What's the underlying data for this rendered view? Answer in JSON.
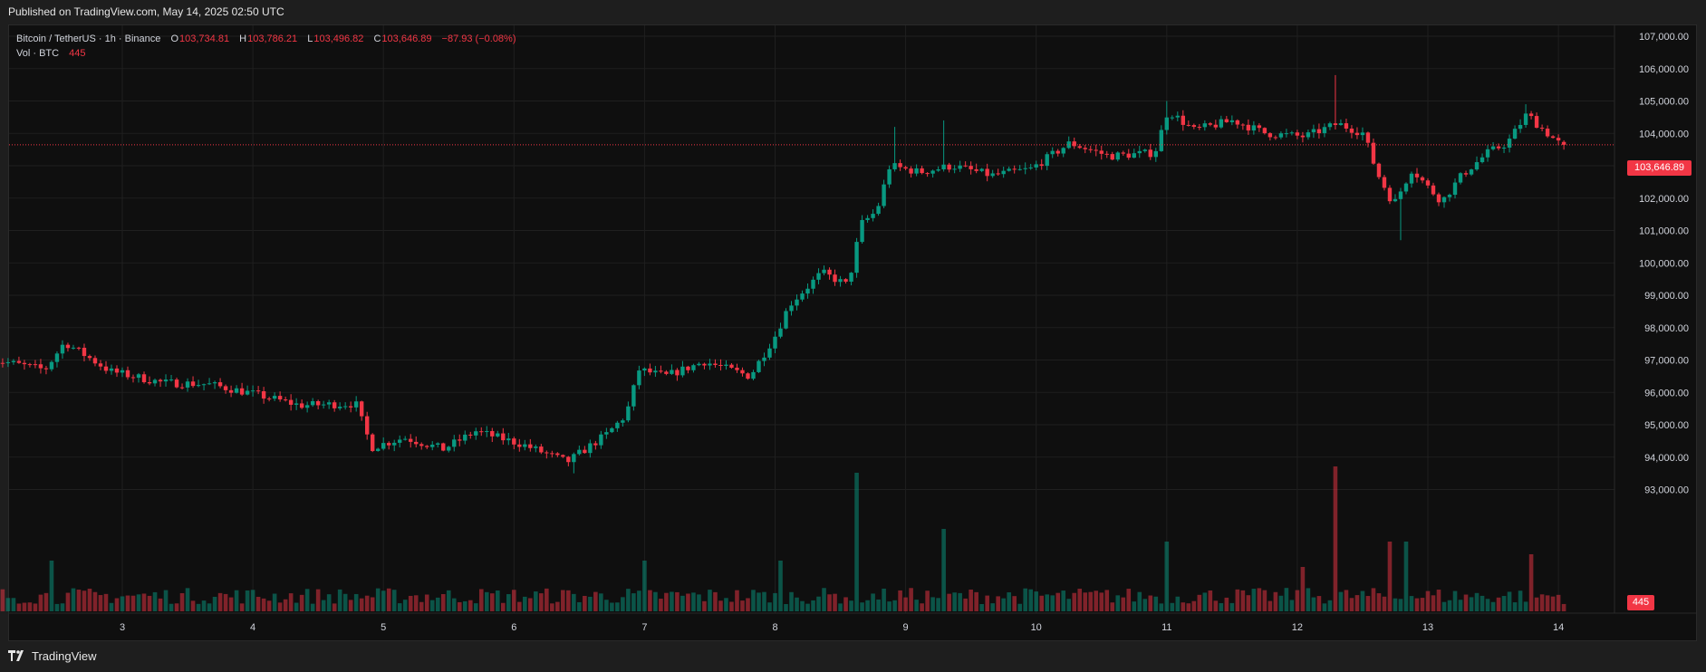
{
  "header": {
    "published": "Published on TradingView.com, May 14, 2025 02:50 UTC"
  },
  "legend": {
    "symbol": "Bitcoin / TetherUS · 1h · Binance",
    "o_label": "O",
    "o": "103,734.81",
    "h_label": "H",
    "h": "103,786.21",
    "l_label": "L",
    "l": "103,496.82",
    "c_label": "C",
    "c": "103,646.89",
    "change": "−87.93 (−0.08%)",
    "vol_label": "Vol · BTC",
    "vol": "445"
  },
  "price_tag": "103,646.89",
  "vol_tag": "445",
  "footer": {
    "brand": "TradingView"
  },
  "colors": {
    "up": "#089981",
    "down": "#f23645",
    "bg": "#0f0f0f",
    "grid": "#1f1f1f"
  },
  "chart_data": {
    "type": "candlestick",
    "interval": "1h",
    "y_ticks": [
      93000,
      94000,
      95000,
      96000,
      97000,
      98000,
      99000,
      100000,
      101000,
      102000,
      103000,
      104000,
      105000,
      106000,
      107000
    ],
    "y_tick_labels": [
      "93,000.00",
      "94,000.00",
      "95,000.00",
      "96,000.00",
      "97,000.00",
      "98,000.00",
      "99,000.00",
      "100,000.00",
      "101,000.00",
      "102,000.00",
      "103,000.00",
      "104,000.00",
      "105,000.00",
      "106,000.00",
      "107,000.00"
    ],
    "ylim": [
      92400,
      107400
    ],
    "x_tick_labels": [
      "3",
      "4",
      "5",
      "6",
      "7",
      "8",
      "9",
      "10",
      "11",
      "12",
      "13",
      "14"
    ],
    "last_price": 103646.89,
    "grid": true,
    "up_color": "#089981",
    "down_color": "#f23645",
    "anchors": [
      [
        2.0,
        97050
      ],
      [
        2.45,
        96700
      ],
      [
        2.6,
        97550
      ],
      [
        2.95,
        96650
      ],
      [
        3.35,
        96300
      ],
      [
        3.7,
        96250
      ],
      [
        4.0,
        96000
      ],
      [
        4.4,
        95600
      ],
      [
        4.83,
        95650
      ],
      [
        4.95,
        94300
      ],
      [
        5.2,
        94600
      ],
      [
        5.5,
        94250
      ],
      [
        5.75,
        94800
      ],
      [
        6.1,
        94400
      ],
      [
        6.45,
        93850
      ],
      [
        6.75,
        94700
      ],
      [
        6.9,
        95300
      ],
      [
        7.0,
        96700
      ],
      [
        7.2,
        96500
      ],
      [
        7.5,
        96950
      ],
      [
        7.85,
        96500
      ],
      [
        8.05,
        97800
      ],
      [
        8.15,
        98700
      ],
      [
        8.4,
        99700
      ],
      [
        8.6,
        99300
      ],
      [
        8.7,
        101200
      ],
      [
        8.82,
        101600
      ],
      [
        8.92,
        103000
      ],
      [
        9.15,
        102800
      ],
      [
        9.4,
        103000
      ],
      [
        9.7,
        102700
      ],
      [
        10.0,
        102900
      ],
      [
        10.3,
        103700
      ],
      [
        10.6,
        103300
      ],
      [
        10.95,
        103400
      ],
      [
        11.05,
        104700
      ],
      [
        11.25,
        104100
      ],
      [
        11.55,
        104400
      ],
      [
        11.8,
        104000
      ],
      [
        12.1,
        103900
      ],
      [
        12.35,
        104300
      ],
      [
        12.55,
        104000
      ],
      [
        12.65,
        102800
      ],
      [
        12.78,
        101800
      ],
      [
        12.92,
        102900
      ],
      [
        13.05,
        102300
      ],
      [
        13.15,
        101900
      ],
      [
        13.3,
        102700
      ],
      [
        13.5,
        103400
      ],
      [
        13.65,
        103700
      ],
      [
        13.8,
        104600
      ],
      [
        13.9,
        104200
      ],
      [
        14.06,
        103646.89
      ]
    ],
    "volume_spikes": {
      "8.62": 95,
      "9.3": 65,
      "11.0": 55,
      "12.3": 100,
      "12.7": 55,
      "12.82": 55,
      "13.78": 45,
      "7.0": 40,
      "8.05": 40,
      "12.05": 35,
      "2.45": 40
    }
  }
}
